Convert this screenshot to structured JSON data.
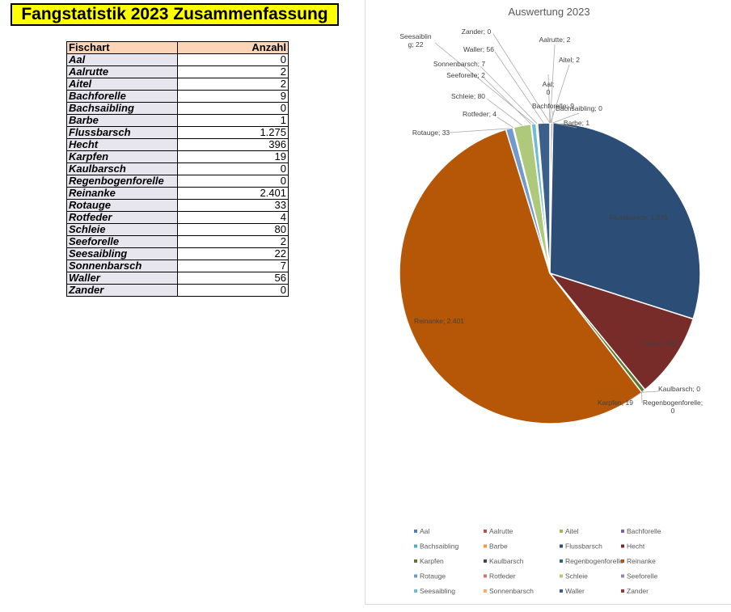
{
  "title": "Fangstatistik 2023 Zusammenfassung",
  "table": {
    "headers": [
      "Fischart",
      "Anzahl"
    ],
    "rows": [
      {
        "name": "Aal",
        "value": "0"
      },
      {
        "name": "Aalrutte",
        "value": "2"
      },
      {
        "name": "Aitel",
        "value": "2"
      },
      {
        "name": "Bachforelle",
        "value": "9"
      },
      {
        "name": "Bachsaibling",
        "value": "0"
      },
      {
        "name": "Barbe",
        "value": "1"
      },
      {
        "name": "Flussbarsch",
        "value": "1.275"
      },
      {
        "name": "Hecht",
        "value": "396"
      },
      {
        "name": "Karpfen",
        "value": "19"
      },
      {
        "name": "Kaulbarsch",
        "value": "0"
      },
      {
        "name": "Regenbogenforelle",
        "value": "0"
      },
      {
        "name": "Reinanke",
        "value": "2.401"
      },
      {
        "name": "Rotauge",
        "value": "33"
      },
      {
        "name": "Rotfeder",
        "value": "4"
      },
      {
        "name": "Schleie",
        "value": "80"
      },
      {
        "name": "Seeforelle",
        "value": "2"
      },
      {
        "name": "Seesaibling",
        "value": "22"
      },
      {
        "name": "Sonnenbarsch",
        "value": "7"
      },
      {
        "name": "Waller",
        "value": "56"
      },
      {
        "name": "Zander",
        "value": "0"
      }
    ]
  },
  "chart_data": {
    "type": "pie",
    "title": "Auswertung 2023",
    "legend_position": "bottom",
    "categories": [
      "Aal",
      "Aalrutte",
      "Aitel",
      "Bachforelle",
      "Bachsaibling",
      "Barbe",
      "Flussbarsch",
      "Hecht",
      "Karpfen",
      "Kaulbarsch",
      "Regenbogenforelle",
      "Reinanke",
      "Rotauge",
      "Rotfeder",
      "Schleie",
      "Seeforelle",
      "Seesaibling",
      "Sonnenbarsch",
      "Waller",
      "Zander"
    ],
    "values": [
      0,
      2,
      2,
      9,
      0,
      1,
      1275,
      396,
      19,
      0,
      0,
      2401,
      33,
      4,
      80,
      2,
      22,
      7,
      56,
      0
    ],
    "data_labels": [
      "Aal; 0",
      "Aalrutte; 2",
      "Aitel; 2",
      "Bachforelle; 9",
      "Bachsaibling; 0",
      "Barbe; 1",
      "Flussbarsch; 1.275",
      "Hecht; 396",
      "Karpfen; 19",
      "Kaulbarsch; 0",
      "Regenbogenforelle; 0",
      "Reinanke; 2.401",
      "Rotauge; 33",
      "Rotfeder; 4",
      "Schleie; 80",
      "Seeforelle; 2",
      "Seesaibling; 22",
      "Sonnenbarsch; 7",
      "Waller; 56",
      "Zander; 0"
    ],
    "colors": [
      "#4e81bd",
      "#c0504d",
      "#9bbb59",
      "#8064a2",
      "#4bacc6",
      "#f79646",
      "#2c4d75",
      "#772c2a",
      "#5f7530",
      "#4d3b62",
      "#276a7c",
      "#b65708",
      "#729aca",
      "#cd7371",
      "#afc97a",
      "#9983b5",
      "#6fbdd1",
      "#f9ab6b",
      "#3a5f8b",
      "#9c3836"
    ]
  }
}
